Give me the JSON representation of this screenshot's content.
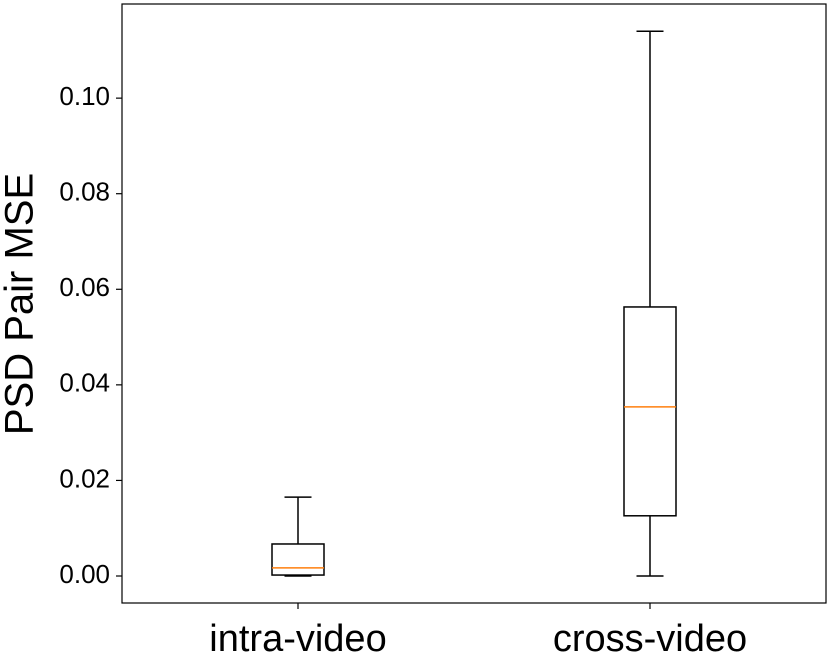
{
  "chart_data": {
    "type": "box",
    "ylabel": "PSD Pair MSE",
    "categories": [
      "intra-video",
      "cross-video"
    ],
    "stats": {
      "whislo": [
        0.0,
        0.0
      ],
      "q1": [
        0.0002,
        0.0126
      ],
      "med": [
        0.0017,
        0.0354
      ],
      "q3": [
        0.0067,
        0.0563
      ],
      "whishi": [
        0.0165,
        0.114
      ]
    },
    "box_color": "#000000",
    "median_color": "#ff7f0e",
    "ylim": [
      -0.00565,
      0.1197
    ],
    "yticks": [
      {
        "value": 0,
        "label": "0.00"
      },
      {
        "value": 0.02,
        "label": "0.02"
      },
      {
        "value": 0.04,
        "label": "0.04"
      },
      {
        "value": 0.06,
        "label": "0.06"
      },
      {
        "value": 0.08,
        "label": "0.08"
      },
      {
        "value": 0.1,
        "label": "0.10"
      }
    ],
    "grid": false
  }
}
